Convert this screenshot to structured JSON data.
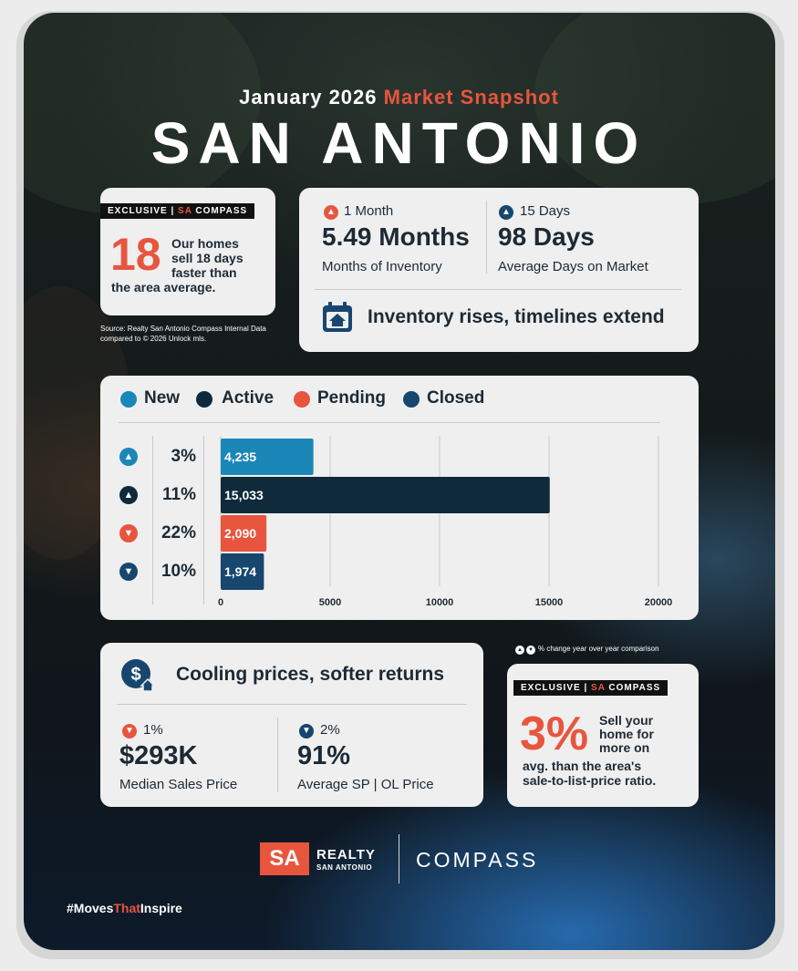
{
  "header": {
    "subtitle_month": "January 2026",
    "subtitle_accent": "Market Snapshot",
    "title": "SAN ANTONIO"
  },
  "exclusive_top": {
    "tag_prefix": "EXCLUSIVE |",
    "tag_sa": "SA",
    "tag_suffix": "COMPASS",
    "number": "18",
    "text_line1": "Our homes",
    "text_line2": "sell 18 days",
    "text_line3": "faster than",
    "text_line4": "the area average."
  },
  "source": {
    "line1": "Source: Realty San Antonio Compass Internal Data",
    "line2": "compared to © 2026 Unlock mls."
  },
  "inventory": {
    "stat1_change": "1 Month",
    "stat1_direction": "up",
    "stat1_value": "5.49 Months",
    "stat1_label": "Months of Inventory",
    "stat2_change": "15 Days",
    "stat2_direction": "up",
    "stat2_value": "98 Days",
    "stat2_label": "Average Days on Market",
    "headline": "Inventory rises, timelines extend",
    "icon": "calendar-house-icon"
  },
  "chart_data": {
    "type": "bar",
    "orientation": "horizontal",
    "categories": [
      "New",
      "Active",
      "Pending",
      "Closed"
    ],
    "values": [
      4235,
      15033,
      2090,
      1974
    ],
    "value_labels": [
      "4,235",
      "15,033",
      "2,090",
      "1,974"
    ],
    "changes": [
      "3%",
      "11%",
      "22%",
      "10%"
    ],
    "change_directions": [
      "up",
      "up",
      "down",
      "down"
    ],
    "colors": [
      "#1a87b8",
      "#0f2a3a",
      "#e8553f",
      "#17466e"
    ],
    "arrow_colors": [
      "#1a87b8",
      "#0f2a3a",
      "#e8553f",
      "#17466e"
    ],
    "xlim": [
      0,
      20000
    ],
    "x_ticks": [
      "0",
      "5000",
      "10000",
      "15000",
      "20000"
    ],
    "x_tick_values": [
      0,
      5000,
      10000,
      15000,
      20000
    ],
    "legend": [
      "New",
      "Active",
      "Pending",
      "Closed"
    ],
    "legend_position": "top-left",
    "grid": true
  },
  "prices": {
    "headline": "Cooling prices, softer returns",
    "icon": "dollar-house-icon",
    "stat1_change": "1%",
    "stat1_direction": "down",
    "stat1_value": "$293K",
    "stat1_label": "Median Sales Price",
    "stat2_change": "2%",
    "stat2_direction": "down",
    "stat2_value": "91%",
    "stat2_label": "Average SP | OL Price"
  },
  "yoy_note": "% change year over year comparison",
  "exclusive_bottom": {
    "tag_prefix": "EXCLUSIVE |",
    "tag_sa": "SA",
    "tag_suffix": "COMPASS",
    "number": "3%",
    "text_line1": "Sell your",
    "text_line2": "home for",
    "text_line3": "more on",
    "text_line4": "avg. than the area's",
    "text_line5": "sale-to-list-price ratio."
  },
  "footer": {
    "logo_sa": "SA",
    "logo_realty": "REALTY",
    "logo_sub": "SAN ANTONIO",
    "compass": "COMPASS",
    "hashtag_prefix": "#Moves",
    "hashtag_accent": "That",
    "hashtag_suffix": "Inspire"
  },
  "colors": {
    "accent": "#e8553f",
    "navy": "#17466e",
    "teal": "#1a87b8",
    "dark": "#0f2a3a"
  }
}
